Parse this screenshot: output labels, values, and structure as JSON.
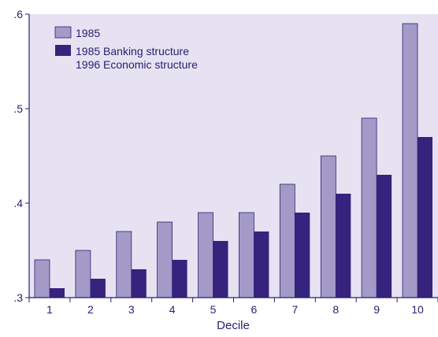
{
  "chart_data": {
    "type": "bar",
    "title": "",
    "xlabel": "Decile",
    "ylabel": "",
    "categories": [
      "1",
      "2",
      "3",
      "4",
      "5",
      "6",
      "7",
      "8",
      "9",
      "10"
    ],
    "ylim": [
      0.3,
      0.6
    ],
    "yticks": [
      0.3,
      0.4,
      0.5,
      0.6
    ],
    "ytick_labels": [
      ".3",
      ".4",
      ".5",
      ".6"
    ],
    "grid": false,
    "legend_position": "top-left",
    "legend": [
      {
        "label": "1985"
      },
      {
        "label": "1985 Banking structure"
      },
      {
        "label": "1996 Economic structure"
      }
    ],
    "series": [
      {
        "name": "1985",
        "color": "#a39ac8",
        "values": [
          0.34,
          0.35,
          0.37,
          0.38,
          0.39,
          0.39,
          0.42,
          0.45,
          0.49,
          0.59
        ]
      },
      {
        "name": "1985 Banking structure / 1996 Economic structure",
        "color": "#35237d",
        "values": [
          0.31,
          0.32,
          0.33,
          0.34,
          0.36,
          0.37,
          0.39,
          0.41,
          0.43,
          0.47
        ]
      }
    ],
    "plot_background": "#e6e2f2",
    "axis_color": "#2a2170"
  }
}
